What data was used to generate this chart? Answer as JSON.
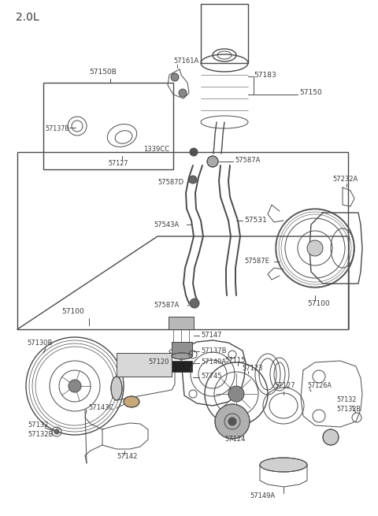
{
  "bg_color": "#ffffff",
  "line_color": "#4a4a4a",
  "text_color": "#3a3a3a",
  "title": "2.0L",
  "figsize": [
    4.8,
    6.55
  ],
  "dpi": 100,
  "xlim": [
    0,
    480
  ],
  "ylim": [
    0,
    655
  ]
}
